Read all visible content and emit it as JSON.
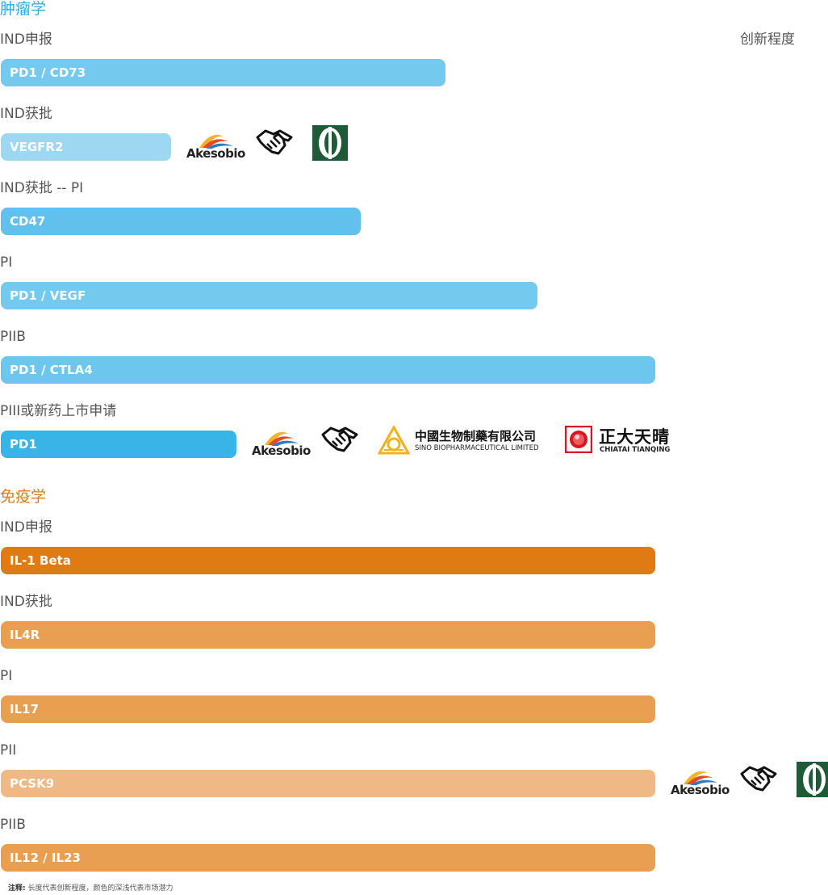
{
  "header": {
    "innovation_label": "创新程度"
  },
  "colors": {
    "oncology_title": "#29aee5",
    "immunology_title": "#e07a12",
    "stage_text": "#555555"
  },
  "chart_data": [
    {
      "type": "bar",
      "title": "肿瘤学",
      "orientation": "horizontal",
      "grid": false,
      "rows": [
        {
          "stage": "IND申报",
          "target": "PD1 / CD73",
          "innovation": 0.68,
          "color": "#74caee",
          "partners": []
        },
        {
          "stage": "IND获批",
          "target": "VEGFR2",
          "innovation": 0.26,
          "color": "#9dd7f1",
          "partners": [
            "akesobio-logo",
            "handshake-icon",
            "green-pill-logo"
          ]
        },
        {
          "stage": "IND获批 -- PI",
          "target": "CD47",
          "innovation": 0.55,
          "color": "#61c0ec",
          "partners": []
        },
        {
          "stage": "PI",
          "target": "PD1 / VEGF",
          "innovation": 0.82,
          "color": "#74caee",
          "partners": []
        },
        {
          "stage": "PIIB",
          "target": "PD1 / CTLA4",
          "innovation": 1.0,
          "color": "#6cc6ed",
          "partners": []
        },
        {
          "stage": "PIII或新药上市申请",
          "target": "PD1",
          "innovation": 0.36,
          "color": "#38b4e7",
          "partners": [
            "akesobio-logo",
            "handshake-icon",
            "sino-biopharm-logo",
            "chiatai-tianqing-logo"
          ]
        }
      ]
    },
    {
      "type": "bar",
      "title": "免疫学",
      "orientation": "horizontal",
      "grid": false,
      "rows": [
        {
          "stage": "IND申报",
          "target": "IL-1 Beta",
          "innovation": 1.0,
          "color": "#e07a12",
          "partners": []
        },
        {
          "stage": "IND获批",
          "target": "IL4R",
          "innovation": 1.0,
          "color": "#e99f52",
          "partners": []
        },
        {
          "stage": "PI",
          "target": "IL17",
          "innovation": 1.0,
          "color": "#e99f52",
          "partners": []
        },
        {
          "stage": "PII",
          "target": "PCSK9",
          "innovation": 1.0,
          "color": "#efb985",
          "partners": [
            "akesobio-logo",
            "handshake-icon",
            "green-pill-logo"
          ]
        },
        {
          "stage": "PIIB",
          "target": "IL12 / IL23",
          "innovation": 1.0,
          "color": "#e99f52",
          "partners": []
        }
      ]
    }
  ],
  "logos": {
    "akesobio": "Akesobio",
    "sino_cn": "中國生物制藥有限公司",
    "sino_en": "SINO BIOPHARMACEUTICAL LIMITED",
    "chiatai_cn": "正大天晴",
    "chiatai_en": "CHIATAI TIANQING"
  },
  "note": {
    "label": "注释:",
    "text": "长度代表创新程度，颜色的深浅代表市场潜力"
  }
}
